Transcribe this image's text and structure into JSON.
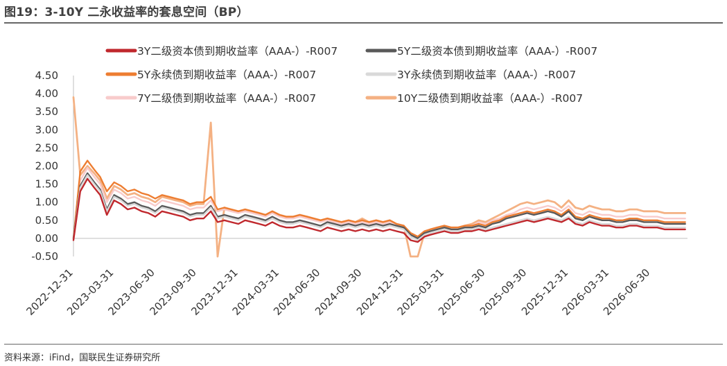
{
  "title": "图19：3-10Y 二永收益率的套息空间（BP）",
  "source": "资料来源：iFind，国联民生证券研究所",
  "chart_data": {
    "type": "line",
    "ylim": [
      -0.5,
      4.5
    ],
    "yticks": [
      "-0.50",
      "0.00",
      "0.50",
      "1.00",
      "1.50",
      "2.00",
      "2.50",
      "3.00",
      "3.50",
      "4.00",
      "4.50"
    ],
    "ytick_values": [
      -0.5,
      0,
      0.5,
      1,
      1.5,
      2,
      2.5,
      3,
      3.5,
      4,
      4.5
    ],
    "xticks": [
      "2022-12-31",
      "2023-03-31",
      "2023-06-30",
      "2023-09-30",
      "2023-12-31",
      "2024-03-31",
      "2024-06-30",
      "2024-09-30",
      "2024-12-31",
      "2025-03-31",
      "2025-06-30",
      "2025-09-30",
      "2025-12-31",
      "2026-03-31",
      "2026-06-30"
    ],
    "xlim": [
      "2022-12-31",
      "2026-09-20"
    ],
    "legend_position": "top",
    "x": [
      "2022-12-31",
      "2023-01-15",
      "2023-01-31",
      "2023-02-15",
      "2023-02-28",
      "2023-03-15",
      "2023-03-31",
      "2023-04-15",
      "2023-04-30",
      "2023-05-15",
      "2023-05-31",
      "2023-06-15",
      "2023-06-30",
      "2023-07-15",
      "2023-07-31",
      "2023-08-15",
      "2023-08-31",
      "2023-09-15",
      "2023-09-30",
      "2023-10-15",
      "2023-10-31",
      "2023-11-15",
      "2023-11-30",
      "2023-12-15",
      "2023-12-31",
      "2024-01-15",
      "2024-01-31",
      "2024-02-15",
      "2024-02-29",
      "2024-03-15",
      "2024-03-31",
      "2024-04-15",
      "2024-04-30",
      "2024-05-15",
      "2024-05-31",
      "2024-06-15",
      "2024-06-30",
      "2024-07-15",
      "2024-07-31",
      "2024-08-15",
      "2024-08-31",
      "2024-09-15",
      "2024-09-30",
      "2024-10-15",
      "2024-10-31",
      "2024-11-15",
      "2024-11-30",
      "2024-12-15",
      "2024-12-31",
      "2025-01-15",
      "2025-01-31",
      "2025-02-15",
      "2025-02-28",
      "2025-03-15",
      "2025-03-31",
      "2025-04-15",
      "2025-04-30",
      "2025-05-15",
      "2025-05-31",
      "2025-06-15",
      "2025-06-30",
      "2025-07-15",
      "2025-07-31",
      "2025-08-15",
      "2025-08-31",
      "2025-09-15",
      "2025-09-30",
      "2025-10-15",
      "2025-10-31",
      "2025-11-15",
      "2025-11-30",
      "2025-12-15",
      "2025-12-31",
      "2026-01-15",
      "2026-01-31",
      "2026-02-15",
      "2026-02-28",
      "2026-03-15",
      "2026-03-31",
      "2026-04-15",
      "2026-04-30",
      "2026-05-15",
      "2026-05-31",
      "2026-06-15",
      "2026-06-30",
      "2026-07-15",
      "2026-07-31",
      "2026-08-15",
      "2026-08-31",
      "2026-09-15"
    ],
    "series": [
      {
        "name": "3Y二级资本债到期收益率（AAA-）-R007",
        "color": "#c0282d",
        "width": 2.4,
        "values": [
          -0.05,
          1.3,
          1.65,
          1.4,
          1.2,
          0.65,
          1.05,
          0.95,
          0.8,
          0.85,
          0.75,
          0.7,
          0.6,
          0.75,
          0.7,
          0.65,
          0.6,
          0.5,
          0.55,
          0.55,
          0.75,
          0.45,
          0.5,
          0.45,
          0.4,
          0.5,
          0.45,
          0.4,
          0.35,
          0.45,
          0.35,
          0.3,
          0.3,
          0.35,
          0.3,
          0.25,
          0.2,
          0.3,
          0.25,
          0.2,
          0.25,
          0.2,
          0.25,
          0.2,
          0.25,
          0.2,
          0.25,
          0.2,
          0.15,
          -0.05,
          -0.1,
          0.05,
          0.1,
          0.15,
          0.2,
          0.15,
          0.15,
          0.2,
          0.2,
          0.25,
          0.2,
          0.25,
          0.3,
          0.35,
          0.4,
          0.45,
          0.5,
          0.45,
          0.5,
          0.55,
          0.5,
          0.45,
          0.55,
          0.4,
          0.35,
          0.45,
          0.4,
          0.35,
          0.35,
          0.3,
          0.3,
          0.35,
          0.35,
          0.3,
          0.3,
          0.3,
          0.25,
          0.25,
          0.25,
          0.25
        ]
      },
      {
        "name": "5Y二级资本债到期收益率（AAA-）-R007",
        "color": "#595959",
        "width": 2.4,
        "values": [
          0.0,
          1.45,
          1.8,
          1.55,
          1.35,
          0.8,
          1.2,
          1.1,
          0.95,
          1.0,
          0.9,
          0.85,
          0.75,
          0.9,
          0.85,
          0.8,
          0.75,
          0.65,
          0.7,
          0.7,
          0.9,
          0.6,
          0.65,
          0.6,
          0.55,
          0.65,
          0.6,
          0.55,
          0.5,
          0.6,
          0.5,
          0.45,
          0.45,
          0.5,
          0.45,
          0.4,
          0.35,
          0.45,
          0.4,
          0.35,
          0.4,
          0.35,
          0.4,
          0.35,
          0.4,
          0.35,
          0.4,
          0.35,
          0.3,
          0.1,
          0.0,
          0.15,
          0.2,
          0.25,
          0.3,
          0.25,
          0.25,
          0.3,
          0.3,
          0.35,
          0.3,
          0.4,
          0.45,
          0.55,
          0.6,
          0.65,
          0.7,
          0.65,
          0.7,
          0.75,
          0.7,
          0.6,
          0.75,
          0.55,
          0.5,
          0.6,
          0.55,
          0.5,
          0.5,
          0.45,
          0.45,
          0.5,
          0.5,
          0.45,
          0.45,
          0.45,
          0.4,
          0.4,
          0.4,
          0.4
        ]
      },
      {
        "name": "5Y永续债到期收益率（AAA-）-R007",
        "color": "#ed7d31",
        "width": 2.4,
        "values": [
          0.0,
          1.85,
          2.15,
          1.9,
          1.7,
          1.3,
          1.55,
          1.45,
          1.3,
          1.35,
          1.25,
          1.2,
          1.1,
          1.2,
          1.15,
          1.1,
          1.05,
          0.95,
          1.0,
          1.0,
          1.15,
          0.8,
          0.85,
          0.8,
          0.75,
          0.8,
          0.75,
          0.7,
          0.65,
          0.75,
          0.65,
          0.6,
          0.6,
          0.65,
          0.6,
          0.55,
          0.5,
          0.55,
          0.5,
          0.45,
          0.5,
          0.45,
          0.5,
          0.45,
          0.5,
          0.45,
          0.5,
          0.4,
          0.35,
          0.15,
          0.05,
          0.2,
          0.25,
          0.3,
          0.35,
          0.3,
          0.3,
          0.35,
          0.35,
          0.4,
          0.35,
          0.45,
          0.5,
          0.6,
          0.65,
          0.7,
          0.75,
          0.7,
          0.75,
          0.8,
          0.75,
          0.65,
          0.8,
          0.6,
          0.55,
          0.65,
          0.6,
          0.55,
          0.55,
          0.5,
          0.5,
          0.55,
          0.55,
          0.5,
          0.5,
          0.5,
          0.45,
          0.45,
          0.45,
          0.45
        ]
      },
      {
        "name": "3Y永续债到期收益率（AAA-）-R007",
        "color": "#d9d9d9",
        "width": 2.4,
        "values": [
          -0.05,
          1.4,
          1.75,
          1.5,
          1.3,
          0.75,
          1.15,
          1.05,
          0.9,
          0.95,
          0.85,
          0.8,
          0.7,
          0.85,
          0.8,
          0.75,
          0.7,
          0.6,
          0.65,
          0.65,
          0.85,
          0.55,
          0.6,
          0.55,
          0.5,
          0.6,
          0.55,
          0.5,
          0.45,
          0.55,
          0.45,
          0.4,
          0.4,
          0.45,
          0.4,
          0.35,
          0.3,
          0.4,
          0.35,
          0.3,
          0.35,
          0.3,
          0.35,
          0.3,
          0.35,
          0.3,
          0.35,
          0.3,
          0.25,
          0.05,
          -0.05,
          0.1,
          0.15,
          0.2,
          0.25,
          0.2,
          0.2,
          0.25,
          0.25,
          0.3,
          0.25,
          0.3,
          0.35,
          0.4,
          0.45,
          0.5,
          0.55,
          0.5,
          0.55,
          0.6,
          0.55,
          0.5,
          0.6,
          0.45,
          0.4,
          0.5,
          0.45,
          0.4,
          0.4,
          0.35,
          0.35,
          0.4,
          0.4,
          0.35,
          0.35,
          0.35,
          0.3,
          0.3,
          0.3,
          0.3
        ]
      },
      {
        "name": "7Y二级债到期收益率（AAA-）-R007",
        "color": "#f8cbcb",
        "width": 2.4,
        "values": [
          0.0,
          1.6,
          1.95,
          1.7,
          1.5,
          1.0,
          1.35,
          1.25,
          1.1,
          1.15,
          1.05,
          1.0,
          0.9,
          1.05,
          1.0,
          0.95,
          0.9,
          0.8,
          0.85,
          0.85,
          1.05,
          0.75,
          0.8,
          0.75,
          0.7,
          0.75,
          0.7,
          0.65,
          0.6,
          0.7,
          0.6,
          0.55,
          0.55,
          0.6,
          0.55,
          0.5,
          0.45,
          0.5,
          0.45,
          0.4,
          0.45,
          0.4,
          0.45,
          0.4,
          0.45,
          0.4,
          0.45,
          0.4,
          0.35,
          0.15,
          0.05,
          0.2,
          0.25,
          0.3,
          0.35,
          0.3,
          0.3,
          0.35,
          0.35,
          0.45,
          0.4,
          0.5,
          0.55,
          0.65,
          0.7,
          0.8,
          0.85,
          0.8,
          0.85,
          0.9,
          0.85,
          0.75,
          0.9,
          0.7,
          0.65,
          0.75,
          0.7,
          0.65,
          0.65,
          0.6,
          0.6,
          0.65,
          0.65,
          0.6,
          0.6,
          0.6,
          0.55,
          0.55,
          0.55,
          0.55
        ]
      },
      {
        "name": "10Y二级债到期收益率（AAA-）-R007",
        "color": "#f4b183",
        "width": 2.8,
        "values": [
          3.9,
          1.75,
          2.0,
          1.8,
          1.6,
          1.1,
          1.45,
          1.35,
          1.2,
          1.25,
          1.15,
          1.1,
          1.0,
          1.15,
          1.1,
          1.05,
          1.0,
          0.9,
          0.95,
          0.95,
          3.2,
          -0.5,
          0.85,
          0.8,
          0.75,
          0.8,
          0.75,
          0.7,
          0.65,
          0.75,
          0.65,
          0.6,
          0.6,
          0.65,
          0.6,
          0.55,
          0.5,
          0.55,
          0.5,
          0.45,
          0.5,
          0.45,
          0.55,
          0.45,
          0.5,
          0.45,
          0.5,
          0.4,
          0.35,
          -0.5,
          -0.5,
          0.15,
          0.25,
          0.3,
          0.35,
          0.3,
          0.3,
          0.35,
          0.4,
          0.5,
          0.45,
          0.55,
          0.65,
          0.75,
          0.85,
          0.95,
          1.0,
          0.95,
          1.0,
          1.05,
          1.0,
          0.85,
          1.05,
          0.85,
          0.8,
          0.9,
          0.85,
          0.8,
          0.8,
          0.75,
          0.75,
          0.8,
          0.8,
          0.75,
          0.75,
          0.75,
          0.7,
          0.7,
          0.7,
          0.7
        ]
      }
    ]
  }
}
